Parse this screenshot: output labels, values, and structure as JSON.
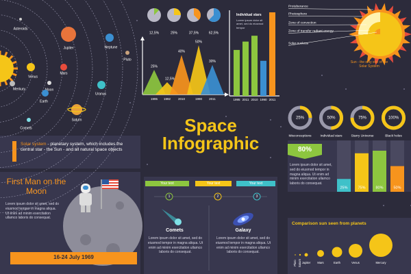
{
  "solar_system": {
    "labels": [
      "Asteroids",
      "Jupiter",
      "Neptune",
      "Pluto",
      "Venus",
      "Mars",
      "Merkury",
      "Moon",
      "Uranus",
      "Earth",
      "Saturn",
      "Comets"
    ],
    "description_lead": "Solar system",
    "description": " - planetary system, which includes the central star - the Sun - and all natural space objects"
  },
  "pies": [
    {
      "value": 12.5,
      "label": "12,5%"
    },
    {
      "value": 25,
      "label": "25%"
    },
    {
      "value": 37.5,
      "label": "37,5%"
    },
    {
      "value": 62.5,
      "label": "62,5%"
    }
  ],
  "peaks": [
    {
      "value": 25,
      "label": "25%",
      "year": "1995"
    },
    {
      "value": 12.5,
      "label": "12,5%",
      "year": "1992"
    },
    {
      "value": 40,
      "label": "40%",
      "year": "2010"
    },
    {
      "value": 50,
      "label": "50%",
      "year": "1990"
    },
    {
      "value": 30,
      "label": "30%",
      "year": "2011"
    }
  ],
  "bars": {
    "title": "Individual stars",
    "text": "Lorem ipsum dolor sit amet, sed do eiusmod tempor",
    "values": [
      55,
      65,
      72,
      42,
      100
    ],
    "years": [
      "1995",
      "2011",
      "2010",
      "1990",
      "2011"
    ]
  },
  "sun": {
    "layers": [
      "Protuberance",
      "Photosphere",
      "Zone of convection",
      "Zone of transfer radiant energy",
      "Solar nucleus"
    ],
    "caption": "Sun - the only star of the Solar System"
  },
  "title": {
    "line1": "Space",
    "line2": "Infographic"
  },
  "donuts": [
    {
      "value": 25,
      "label": "25%",
      "caption": "Misconceptions"
    },
    {
      "value": 50,
      "label": "50%",
      "caption": "Individual stars"
    },
    {
      "value": 75,
      "label": "75%",
      "caption": "Starry Universe"
    },
    {
      "value": 100,
      "label": "100%",
      "caption": "Black holes"
    }
  ],
  "right_panel": {
    "header": "80%",
    "text": "Lorem ipsum dolor sit amet, sed do eiusmod tempor in magna aliqua. Ut enim ad minim exercitation ullamco laboris do consequat.",
    "bars": [
      {
        "value": 25,
        "label": "25%"
      },
      {
        "value": 75,
        "label": "75%"
      },
      {
        "value": 80,
        "label": "80%"
      },
      {
        "value": 50,
        "label": "50%"
      }
    ]
  },
  "moon": {
    "title": "First Man on the Moon",
    "text": "Lorem ipsum dolor sit amet, sed do eiusmod tempor in magna aliqua. Ut enim ad minim exercitation ullamco laboris do consequat.",
    "date": "16-24 July 1969"
  },
  "tabs": {
    "labels": [
      "Your text",
      "Your text",
      "Your text"
    ],
    "steps": [
      "1",
      "2",
      "3"
    ]
  },
  "cards": [
    {
      "title": "Comets",
      "text": "Lorem ipsum dolor sit amet, sed do eiusmod tempor in magna aliqua. Ut enim ad minim exercitation ullamco laboris do consequat."
    },
    {
      "title": "Galaxy",
      "text": "Lorem ipsum dolor sit amet, sed do eiusmod tempor in magna aliqua. Ut enim ad minim exercitation ullamco laboris do consequat."
    }
  ],
  "comparison": {
    "title": "Comparison sun seen from planets",
    "planets": [
      "Pluto",
      "Saturn",
      "Jupiter",
      "Mars",
      "Earth",
      "Venus",
      "Mercury"
    ]
  }
}
